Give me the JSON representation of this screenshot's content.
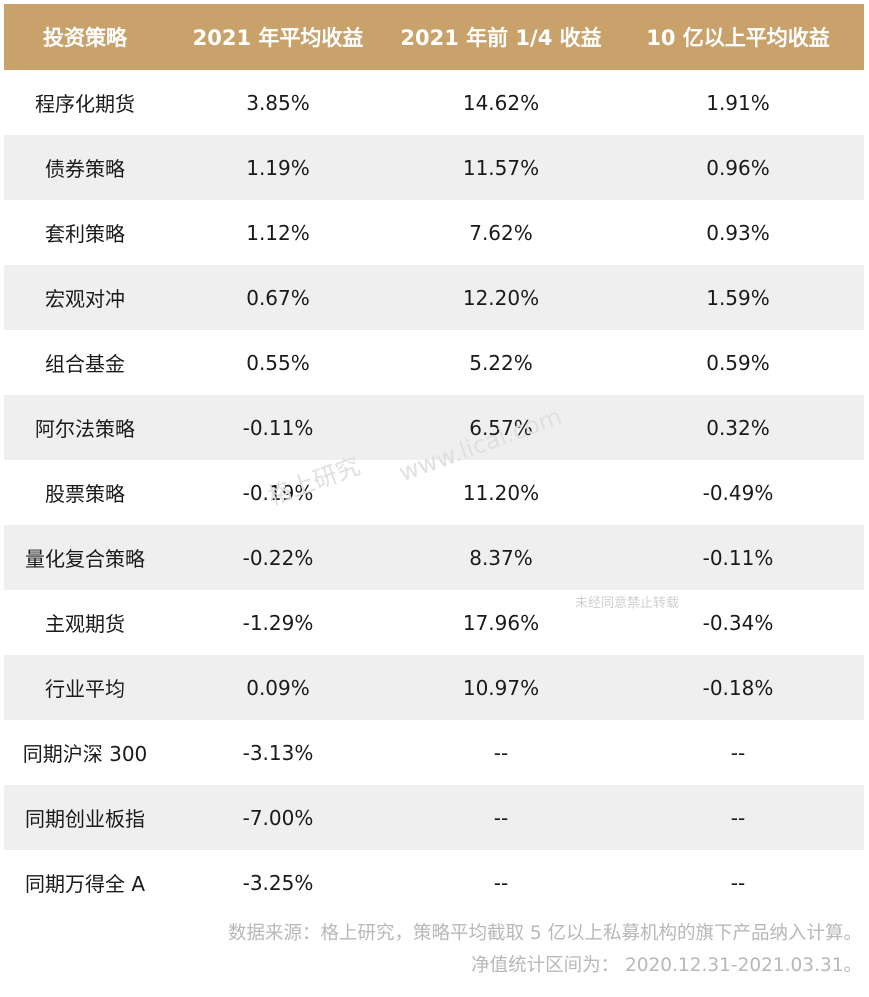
{
  "table": {
    "headers": [
      "投资策略",
      "2021 年平均收益",
      "2021 年前 1/4 收益",
      "10 亿以上平均收益"
    ],
    "rows": [
      [
        "程序化期货",
        "3.85%",
        "14.62%",
        "1.91%"
      ],
      [
        "债券策略",
        "1.19%",
        "11.57%",
        "0.96%"
      ],
      [
        "套利策略",
        "1.12%",
        "7.62%",
        "0.93%"
      ],
      [
        "宏观对冲",
        "0.67%",
        "12.20%",
        "1.59%"
      ],
      [
        "组合基金",
        "0.55%",
        "5.22%",
        "0.59%"
      ],
      [
        "阿尔法策略",
        "-0.11%",
        "6.57%",
        "0.32%"
      ],
      [
        "股票策略",
        "-0.19%",
        "11.20%",
        "-0.49%"
      ],
      [
        "量化复合策略",
        "-0.22%",
        "8.37%",
        "-0.11%"
      ],
      [
        "主观期货",
        "-1.29%",
        "17.96%",
        "-0.34%"
      ],
      [
        "行业平均",
        "0.09%",
        "10.97%",
        "-0.18%"
      ],
      [
        "同期沪深 300",
        "-3.13%",
        "--",
        "--"
      ],
      [
        "同期创业板指",
        "-7.00%",
        "--",
        "--"
      ],
      [
        "同期万得全 A",
        "-3.25%",
        "--",
        "--"
      ]
    ]
  },
  "footer": {
    "line1": "数据来源：格上研究，策略平均截取 5 亿以上私募机构的旗下产品纳入计算。",
    "line2": "净值统计区间为： 2020.12.31-2021.03.31。"
  },
  "watermark": {
    "brand": "格上研究",
    "url": "www.licai.com",
    "note": "未经同意禁止转载"
  },
  "colors": {
    "header_bg": "#c9a16a",
    "alt_row_bg": "#efefef",
    "footer_text": "#b8b8b8"
  }
}
